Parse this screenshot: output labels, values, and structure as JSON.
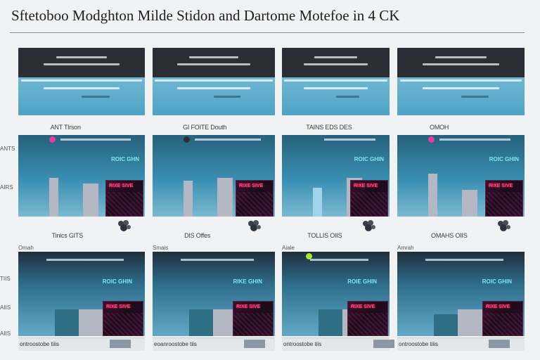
{
  "page": {
    "title": "Sftetoboo Modghton Milde Stidon and Dartome Motefoe in 4 CK"
  },
  "colors": {
    "header_dark": "#2b2e34",
    "header_light": "#5aaccb",
    "panel_top": "#26617c",
    "panel_bottom": "#7bb9d2",
    "heat": "#1c0b1a",
    "heat_text": "#ff4a7a",
    "label_cyan": "#7ee6f0",
    "bar_grey": "#b4b8c4",
    "bar_blue": "#9fd3ea",
    "dot_pink": "#e83a9a",
    "dot_green": "#a8e830",
    "dot_dark": "#2b2e34"
  },
  "row_labels": {
    "upper_1": "ANTS",
    "upper_2": "AIRS",
    "lower_1": "TIIS",
    "lower_2": "AIIS",
    "lower_3": "AIIS"
  },
  "columns": [
    {
      "caption_top": "ANT Tlrson",
      "caption_mid": "Tinics GITS",
      "left_mark": "Omah",
      "upper": {
        "dot": "#e83a9a",
        "cyan": "ROIC GHN",
        "heat": "RIXE SIVE",
        "bars": [
          {
            "h": 0.65,
            "c": "grey"
          },
          {
            "h": 0.55,
            "c": "grey"
          }
        ]
      },
      "lower": {
        "cyan": "ROIC GHIN",
        "heat": "RIXE SIVE",
        "bars": [
          {
            "h": 0.55,
            "c": "blue-dark"
          },
          {
            "h": 0.55,
            "c": "grey"
          }
        ]
      },
      "footer": "ontroostobe  tiiis"
    },
    {
      "caption_top": "GI FOITE Douth",
      "caption_mid": "DIS Offes",
      "left_mark": "Smais",
      "upper": {
        "dot": "#2b2e34",
        "cyan": "",
        "heat": "RIXE SIVE",
        "bars": [
          {
            "h": 0.6,
            "c": "grey"
          },
          {
            "h": 0.65,
            "c": "grey"
          }
        ]
      },
      "lower": {
        "cyan": "RIKE GHIN",
        "heat": "RIXE SIVE",
        "bars": [
          {
            "h": 0.55,
            "c": "blue-dark"
          },
          {
            "h": 0.55,
            "c": "grey"
          }
        ]
      },
      "footer": "eoanroostobe  tiis"
    },
    {
      "caption_top": "TAINS EDS DES",
      "caption_mid": "TOLLIS OIIS",
      "left_mark": "Aiale",
      "upper": {
        "dot": "",
        "cyan": "ROIC GHIN",
        "heat": "RIXE SIVE",
        "bars": [
          {
            "h": 0.48,
            "c": "blue"
          },
          {
            "h": 0.65,
            "c": "grey"
          }
        ]
      },
      "lower": {
        "cyan": "ROIE GHIN",
        "heat": "RIXE SIVE",
        "bars": [
          {
            "h": 0.55,
            "c": "blue-dark"
          },
          {
            "h": 0.55,
            "c": "grey"
          }
        ]
      },
      "footer": "ontroostobe  tiis",
      "lower_dot": "#a8e830"
    },
    {
      "caption_top": "OMOH",
      "caption_mid": "OMAHS OIIS",
      "left_mark": "Amrah",
      "upper": {
        "dot": "#e83a9a",
        "cyan": "ROIC GHIN",
        "heat": "RIXE SIVE",
        "bars": [
          {
            "h": 0.72,
            "c": "grey"
          },
          {
            "h": 0.45,
            "c": "grey"
          }
        ]
      },
      "lower": {
        "cyan": "ROIC GHIN",
        "heat": "RIXE SIVE",
        "bars": [
          {
            "h": 0.45,
            "c": "blue-dark"
          },
          {
            "h": 0.55,
            "c": "grey"
          }
        ]
      },
      "footer": "ontroostobe  tiiis"
    }
  ]
}
